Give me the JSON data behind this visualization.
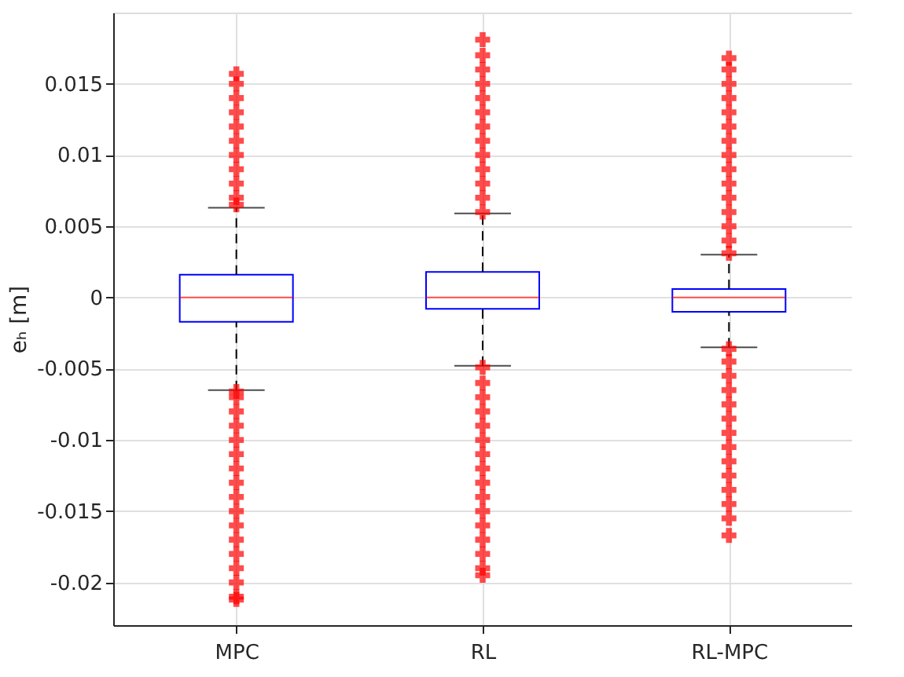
{
  "chart_data": {
    "type": "box",
    "ylabel": "eₕ [m]",
    "categories": [
      "MPC",
      "RL",
      "RL-MPC"
    ],
    "color": "#0000ff",
    "boxes": [
      {
        "low": -0.0065,
        "q1": -0.0017,
        "median": 0,
        "q3": 0.0016,
        "high": 0.0063,
        "outliers": [
          0.0065,
          0.007,
          0.008,
          0.009,
          0.01,
          0.011,
          0.012,
          0.013,
          0.014,
          0.015,
          0.0157,
          -0.0066,
          -0.007,
          -0.008,
          -0.009,
          -0.01,
          -0.011,
          -0.012,
          -0.013,
          -0.014,
          -0.015,
          -0.016,
          -0.017,
          -0.018,
          -0.019,
          -0.02,
          -0.021,
          -0.0212
        ]
      },
      {
        "low": -0.0048,
        "q1": -0.0008,
        "median": 0,
        "q3": 0.0018,
        "high": 0.0059,
        "outliers": [
          0.006,
          0.007,
          0.008,
          0.009,
          0.01,
          0.011,
          0.012,
          0.013,
          0.014,
          0.015,
          0.016,
          0.017,
          0.0181,
          -0.0049,
          -0.006,
          -0.007,
          -0.008,
          -0.009,
          -0.01,
          -0.011,
          -0.012,
          -0.013,
          -0.014,
          -0.015,
          -0.016,
          -0.017,
          -0.018,
          -0.019,
          -0.0195
        ]
      },
      {
        "low": -0.0035,
        "q1": -0.001,
        "median": 0,
        "q3": 0.0006,
        "high": 0.003,
        "outliers": [
          0.0031,
          0.004,
          0.005,
          0.006,
          0.007,
          0.008,
          0.009,
          0.01,
          0.011,
          0.012,
          0.013,
          0.014,
          0.015,
          0.016,
          0.0168,
          -0.0036,
          -0.0045,
          -0.0055,
          -0.0065,
          -0.0075,
          -0.0085,
          -0.0095,
          -0.0105,
          -0.0115,
          -0.0125,
          -0.0135,
          -0.0145,
          -0.0155,
          -0.0167
        ]
      }
    ],
    "ylim": [
      -0.023,
      0.02
    ],
    "yticks": [
      -0.02,
      -0.015,
      -0.01,
      -0.005,
      0,
      0.005,
      0.01,
      0.015
    ],
    "grid": true,
    "marker": "cross"
  }
}
